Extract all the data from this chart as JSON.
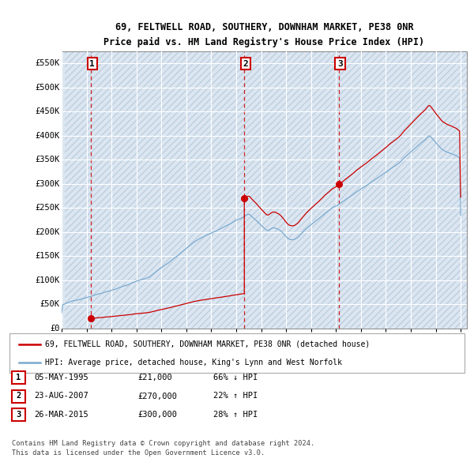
{
  "title1": "69, FELTWELL ROAD, SOUTHERY, DOWNHAM MARKET, PE38 0NR",
  "title2": "Price paid vs. HM Land Registry's House Price Index (HPI)",
  "ylim": [
    0,
    575000
  ],
  "yticks": [
    0,
    50000,
    100000,
    150000,
    200000,
    250000,
    300000,
    350000,
    400000,
    450000,
    500000,
    550000
  ],
  "ytick_labels": [
    "£0",
    "£50K",
    "£100K",
    "£150K",
    "£200K",
    "£250K",
    "£300K",
    "£350K",
    "£400K",
    "£450K",
    "£500K",
    "£550K"
  ],
  "xlim_start": 1993.25,
  "xlim_end": 2025.5,
  "background_color": "#dce6f1",
  "hatch_color": "#bccfe0",
  "grid_color": "#ffffff",
  "property_color": "#cc0000",
  "hpi_color": "#7aaad0",
  "sale_dates": [
    1995.35,
    2007.65,
    2015.23
  ],
  "sale_prices": [
    21000,
    270000,
    300000
  ],
  "sale_labels": [
    "1",
    "2",
    "3"
  ],
  "legend_line1": "69, FELTWELL ROAD, SOUTHERY, DOWNHAM MARKET, PE38 0NR (detached house)",
  "legend_line2": "HPI: Average price, detached house, King's Lynn and West Norfolk",
  "table_rows": [
    [
      "1",
      "05-MAY-1995",
      "£21,000",
      "66% ↓ HPI"
    ],
    [
      "2",
      "23-AUG-2007",
      "£270,000",
      "22% ↑ HPI"
    ],
    [
      "3",
      "26-MAR-2015",
      "£300,000",
      "28% ↑ HPI"
    ]
  ],
  "footnote1": "Contains HM Land Registry data © Crown copyright and database right 2024.",
  "footnote2": "This data is licensed under the Open Government Licence v3.0."
}
